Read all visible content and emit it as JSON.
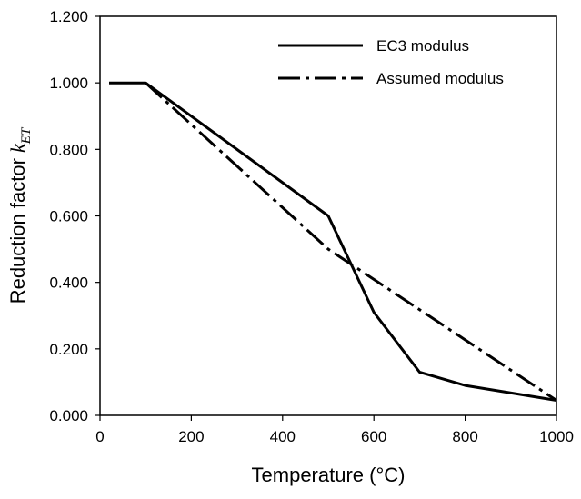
{
  "chart_data": {
    "type": "line",
    "xlabel": "Temperature (°C)",
    "ylabel": {
      "prefix": "Reduction factor ",
      "symbol": "k",
      "subscript": "ET"
    },
    "xlim": [
      0,
      1000
    ],
    "ylim": [
      0,
      1.2
    ],
    "x_ticks": [
      0,
      200,
      400,
      600,
      800,
      1000
    ],
    "x_tick_labels": [
      "0",
      "200",
      "400",
      "600",
      "800",
      "1000"
    ],
    "y_ticks": [
      0,
      0.2,
      0.4,
      0.6,
      0.8,
      1.0,
      1.2
    ],
    "y_tick_labels": [
      "0.000",
      "0.200",
      "0.400",
      "0.600",
      "0.800",
      "1.000",
      "1.200"
    ],
    "grid": false,
    "legend_position": "top-right",
    "series": [
      {
        "name": "EC3 modulus",
        "style": "solid",
        "color": "#000000",
        "points": [
          [
            20,
            1.0
          ],
          [
            100,
            1.0
          ],
          [
            500,
            0.6
          ],
          [
            600,
            0.31
          ],
          [
            700,
            0.13
          ],
          [
            800,
            0.09
          ],
          [
            1000,
            0.045
          ]
        ]
      },
      {
        "name": "Assumed modulus",
        "style": "dashdot",
        "color": "#000000",
        "points": [
          [
            100,
            1.0
          ],
          [
            500,
            0.5
          ],
          [
            1000,
            0.045
          ]
        ]
      }
    ]
  }
}
